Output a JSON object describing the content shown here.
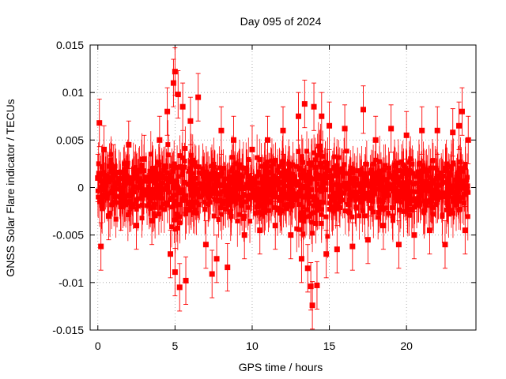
{
  "chart_data": {
    "type": "scatter",
    "title": "Day 095 of 2024",
    "xlabel": "GPS time / hours",
    "ylabel": "GNSS Solar Flare indicator / TECUs",
    "xlim": [
      -0.5,
      24.5
    ],
    "ylim": [
      -0.015,
      0.015
    ],
    "x_ticks": [
      0,
      5,
      10,
      15,
      20
    ],
    "x_tick_labels": [
      "0",
      "5",
      "10",
      "15",
      "20"
    ],
    "y_ticks": [
      -0.015,
      -0.01,
      -0.005,
      0,
      0.005,
      0.01,
      0.015
    ],
    "y_tick_labels": [
      "-0.015",
      "-0.01",
      "-0.005",
      "0",
      "0.005",
      "0.01",
      "0.015"
    ],
    "grid": true,
    "series": [
      {
        "name": "solar flare indicator",
        "color": "#ff0000",
        "marker": "square",
        "error_bars": true,
        "points": [
          {
            "x": 0.0,
            "y": 0.001,
            "err": 0.0025
          },
          {
            "x": 0.1,
            "y": 0.0068,
            "err": 0.0025
          },
          {
            "x": 0.2,
            "y": -0.0062,
            "err": 0.0025
          },
          {
            "x": 0.4,
            "y": 0.004,
            "err": 0.0025
          },
          {
            "x": 0.7,
            "y": -0.003,
            "err": 0.0025
          },
          {
            "x": 1.0,
            "y": 0.002,
            "err": 0.0025
          },
          {
            "x": 1.5,
            "y": -0.002,
            "err": 0.0025
          },
          {
            "x": 2.0,
            "y": 0.0045,
            "err": 0.0025
          },
          {
            "x": 2.5,
            "y": -0.004,
            "err": 0.0025
          },
          {
            "x": 3.0,
            "y": 0.003,
            "err": 0.0025
          },
          {
            "x": 3.5,
            "y": -0.0035,
            "err": 0.0025
          },
          {
            "x": 4.0,
            "y": 0.005,
            "err": 0.0025
          },
          {
            "x": 4.5,
            "y": 0.008,
            "err": 0.0025
          },
          {
            "x": 4.7,
            "y": -0.007,
            "err": 0.0025
          },
          {
            "x": 4.9,
            "y": 0.011,
            "err": 0.0025
          },
          {
            "x": 5.0,
            "y": 0.0122,
            "err": 0.0025
          },
          {
            "x": 5.0,
            "y": -0.0089,
            "err": 0.0025
          },
          {
            "x": 5.2,
            "y": 0.0098,
            "err": 0.0025
          },
          {
            "x": 5.3,
            "y": -0.0105,
            "err": 0.0025
          },
          {
            "x": 5.5,
            "y": 0.0085,
            "err": 0.0025
          },
          {
            "x": 5.7,
            "y": -0.0098,
            "err": 0.0025
          },
          {
            "x": 6.0,
            "y": 0.007,
            "err": 0.0025
          },
          {
            "x": 6.5,
            "y": 0.0095,
            "err": 0.0025
          },
          {
            "x": 7.0,
            "y": -0.006,
            "err": 0.0025
          },
          {
            "x": 7.4,
            "y": -0.0091,
            "err": 0.0025
          },
          {
            "x": 7.7,
            "y": -0.0075,
            "err": 0.0025
          },
          {
            "x": 8.0,
            "y": 0.006,
            "err": 0.0025
          },
          {
            "x": 8.4,
            "y": -0.0084,
            "err": 0.0025
          },
          {
            "x": 8.8,
            "y": 0.005,
            "err": 0.0025
          },
          {
            "x": 9.5,
            "y": -0.005,
            "err": 0.0025
          },
          {
            "x": 10.0,
            "y": 0.004,
            "err": 0.0025
          },
          {
            "x": 10.5,
            "y": -0.0045,
            "err": 0.0025
          },
          {
            "x": 11.0,
            "y": 0.005,
            "err": 0.0025
          },
          {
            "x": 11.5,
            "y": -0.004,
            "err": 0.0025
          },
          {
            "x": 12.0,
            "y": 0.006,
            "err": 0.0025
          },
          {
            "x": 12.5,
            "y": -0.005,
            "err": 0.0025
          },
          {
            "x": 13.0,
            "y": 0.0075,
            "err": 0.0025
          },
          {
            "x": 13.2,
            "y": -0.0075,
            "err": 0.0025
          },
          {
            "x": 13.4,
            "y": 0.0088,
            "err": 0.0025
          },
          {
            "x": 13.6,
            "y": -0.0085,
            "err": 0.0025
          },
          {
            "x": 13.8,
            "y": -0.0104,
            "err": 0.0025
          },
          {
            "x": 13.9,
            "y": -0.0124,
            "err": 0.0025
          },
          {
            "x": 14.0,
            "y": 0.0085,
            "err": 0.0025
          },
          {
            "x": 14.2,
            "y": -0.0103,
            "err": 0.0025
          },
          {
            "x": 14.5,
            "y": 0.0075,
            "err": 0.0025
          },
          {
            "x": 14.8,
            "y": -0.007,
            "err": 0.0025
          },
          {
            "x": 15.0,
            "y": 0.0065,
            "err": 0.0025
          },
          {
            "x": 15.5,
            "y": -0.0065,
            "err": 0.0025
          },
          {
            "x": 16.0,
            "y": 0.0062,
            "err": 0.0025
          },
          {
            "x": 16.5,
            "y": -0.0062,
            "err": 0.0025
          },
          {
            "x": 17.2,
            "y": 0.0082,
            "err": 0.0025
          },
          {
            "x": 17.5,
            "y": -0.0055,
            "err": 0.0025
          },
          {
            "x": 18.0,
            "y": 0.005,
            "err": 0.0025
          },
          {
            "x": 18.5,
            "y": -0.004,
            "err": 0.0025
          },
          {
            "x": 19.0,
            "y": 0.0062,
            "err": 0.0025
          },
          {
            "x": 19.5,
            "y": -0.006,
            "err": 0.0025
          },
          {
            "x": 20.0,
            "y": 0.0055,
            "err": 0.0025
          },
          {
            "x": 20.5,
            "y": -0.005,
            "err": 0.0025
          },
          {
            "x": 21.0,
            "y": 0.006,
            "err": 0.0025
          },
          {
            "x": 21.5,
            "y": -0.0045,
            "err": 0.0025
          },
          {
            "x": 22.0,
            "y": 0.006,
            "err": 0.0025
          },
          {
            "x": 22.5,
            "y": -0.006,
            "err": 0.0025
          },
          {
            "x": 23.0,
            "y": 0.0058,
            "err": 0.0025
          },
          {
            "x": 23.4,
            "y": 0.0065,
            "err": 0.0025
          },
          {
            "x": 23.6,
            "y": 0.008,
            "err": 0.0025
          },
          {
            "x": 23.8,
            "y": -0.0045,
            "err": 0.0025
          },
          {
            "x": 24.0,
            "y": 0.005,
            "err": 0.0025
          }
        ]
      }
    ]
  }
}
